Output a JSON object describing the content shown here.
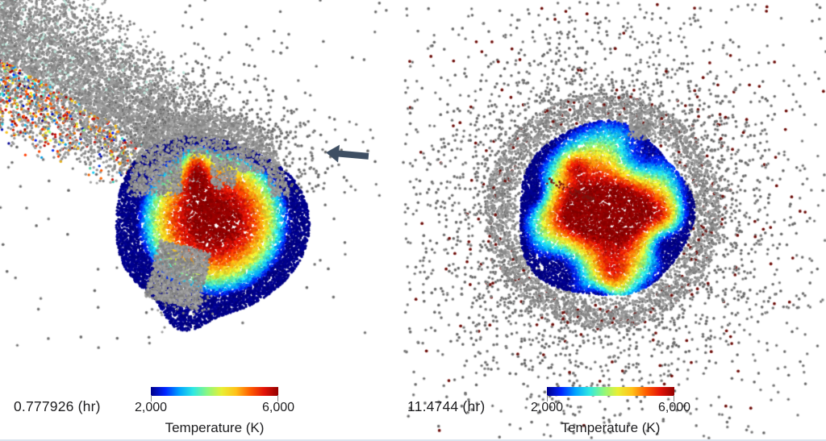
{
  "figure": {
    "background": "#ffffff",
    "bottom_border_color": "#dbe4ee"
  },
  "panels": {
    "left": {
      "time_label": "0.777926 (hr)",
      "colorbar": {
        "min_label": "2,000",
        "max_label": "6,000",
        "title": "Temperature (K)"
      }
    },
    "right": {
      "time_label": "11.4744 (hr)",
      "colorbar": {
        "min_label": "2,000",
        "max_label": "6,000",
        "title": "Temperature (K)"
      }
    }
  },
  "arrow": {
    "color": "#3f4f63"
  },
  "palette": {
    "text": "#1d1d1f",
    "tick": "#8a8a8a",
    "particle_gray": [
      "#9a9a9a",
      "#8b8b8b",
      "#7e7e7e",
      "#a4a4a4"
    ],
    "particle_gray_core": "#4f4f4f",
    "particle_maroon": "#7b1511",
    "particle_maroon_core": "#4a0b08",
    "particle_pale_teal": "#bfe8dc",
    "colormap": [
      "#000089",
      "#0023ff",
      "#00a2ff",
      "#2fe8e2",
      "#8cf77f",
      "#e8ef35",
      "#ffc219",
      "#ff5e00",
      "#e31408",
      "#930000"
    ]
  },
  "chart_data": {
    "type": "scatter",
    "title": "",
    "description": "Two SPH giant-impact simulation snapshots; particles coloured by temperature, grey particles uncoloured debris/ejecta",
    "legend_position": "bottom",
    "panels": [
      {
        "time_label": "0.777926 (hr)",
        "time_hr": 0.777926,
        "colorbar": {
          "label": "Temperature (K)",
          "min": 2000,
          "max": 6000,
          "tick_labels": [
            "2,000",
            "6,000"
          ],
          "colormap": "jet"
        },
        "features": [
          "grey debris trail extending to upper-left corner",
          "warm-coloured particles mixed along lower edge of trail",
          "grey particle cap on top of heated body",
          "hot red core ~6,000 K",
          "cool dark-blue rim ~2,000 K",
          "grey fragment embedded at lower-left of body",
          "arrow annotation pointing left at body"
        ]
      },
      {
        "time_label": "11.4744 (hr)",
        "time_hr": 11.4744,
        "colorbar": {
          "label": "Temperature (K)",
          "min": 2000,
          "max": 6000,
          "tick_labels": [
            "2,000",
            "6,000"
          ],
          "colormap": "jet"
        },
        "features": [
          "circular post-impact body",
          "dark-red central core ~6,000 K",
          "spiral cyan/blue/yellow temperature pattern",
          "dense grey ring hugging the body",
          "radially thinning grey ejecta halo",
          "scattered dark-red condensed particles in halo"
        ]
      }
    ]
  }
}
